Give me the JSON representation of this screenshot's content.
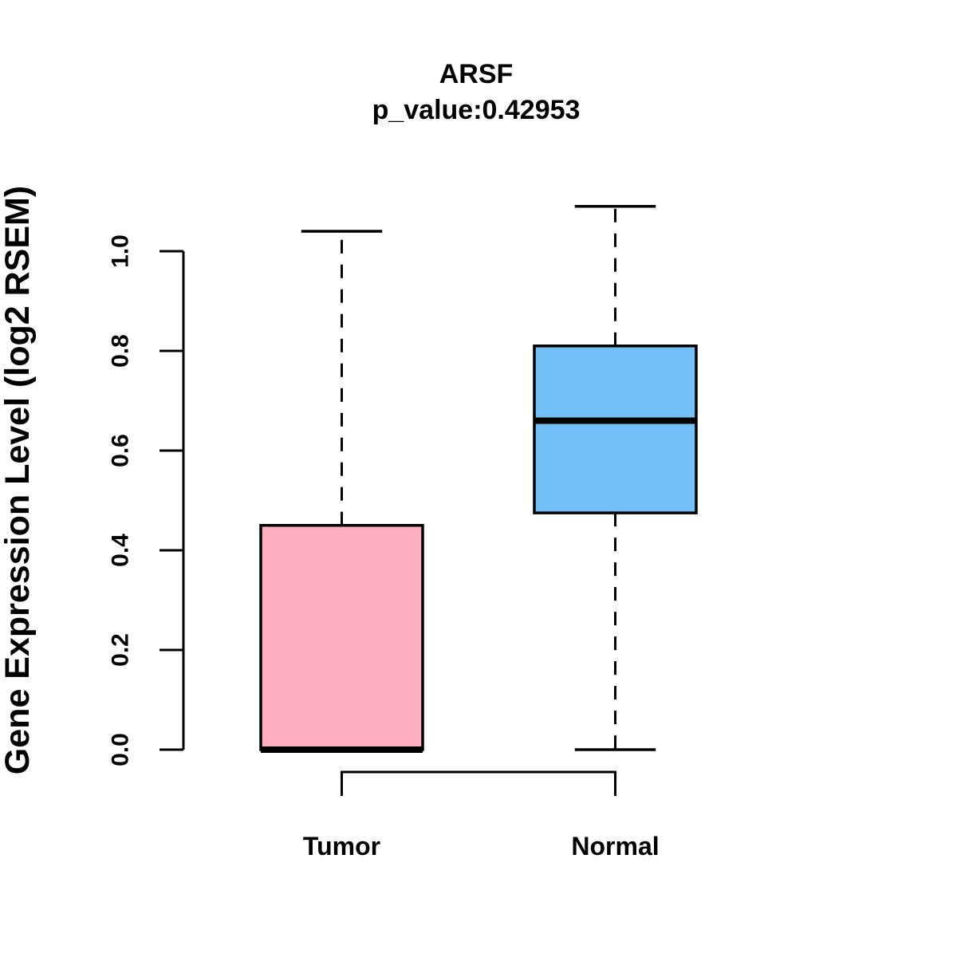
{
  "figure": {
    "title": "ARSF",
    "subtitle": "p_value:0.42953",
    "ylabel": "Gene Expression Level (log2 RSEM)"
  },
  "chart_data": {
    "type": "boxplot",
    "title": "ARSF",
    "subtitle": "p_value:0.42953",
    "ylabel": "Gene Expression Level (log2 RSEM)",
    "xlabel": "",
    "categories": [
      "Tumor",
      "Normal"
    ],
    "series": [
      {
        "name": "Tumor",
        "min": 0.0,
        "q1": 0.0,
        "median": 0.0,
        "q3": 0.45,
        "max": 1.04,
        "color": "#FFAEBF"
      },
      {
        "name": "Normal",
        "min": 0.0,
        "q1": 0.475,
        "median": 0.66,
        "q3": 0.81,
        "max": 1.09,
        "color": "#73BFF8"
      }
    ],
    "ylim": [
      0.0,
      1.0
    ],
    "yticks": [
      0.0,
      0.2,
      0.4,
      0.6,
      0.8,
      1.0
    ],
    "ytick_labels": [
      "0.0",
      "0.2",
      "0.4",
      "0.6",
      "0.8",
      "1.0"
    ],
    "grid": false,
    "legend": "none",
    "whisker_style": "dashed",
    "line_color": "#000000",
    "background_color": "#FFFFFF"
  }
}
